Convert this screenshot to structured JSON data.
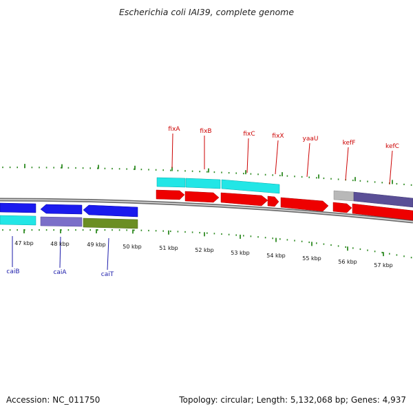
{
  "title": "Escherichia coli IAI39, complete genome",
  "footer": {
    "accession": "Accession: NC_011750",
    "summary": "Topology: circular; Length: 5,132,068 bp; Genes: 4,937"
  },
  "colors": {
    "tick": "#2e8b22",
    "gene_label_top": "#cc0000",
    "gene_label_bottom": "#1a1aaa",
    "red_gene": "#ee0000",
    "blue_gene": "#1a1aee",
    "cyan_feature": "#22e6e6",
    "violet_feature": "#7b6fc9",
    "olive_feature": "#6b8e23",
    "grey_feature": "#b8b8b8",
    "slate_feature": "#5a4f96",
    "backbone": "#8a8a8a"
  },
  "axis": {
    "ticks": [
      {
        "label": "47 kbp"
      },
      {
        "label": "48 kbp"
      },
      {
        "label": "49 kbp"
      },
      {
        "label": "50 kbp"
      },
      {
        "label": "51 kbp"
      },
      {
        "label": "52 kbp"
      },
      {
        "label": "53 kbp"
      },
      {
        "label": "54 kbp"
      },
      {
        "label": "55 kbp"
      },
      {
        "label": "56 kbp"
      },
      {
        "label": "57 kbp"
      }
    ]
  },
  "genes_top": [
    {
      "name": "fixA"
    },
    {
      "name": "fixB"
    },
    {
      "name": "fixC"
    },
    {
      "name": "fixX"
    },
    {
      "name": "yaaU"
    },
    {
      "name": "kefF"
    },
    {
      "name": "kefC"
    }
  ],
  "genes_bottom": [
    {
      "name": "caiB"
    },
    {
      "name": "caiA"
    },
    {
      "name": "caiT"
    }
  ]
}
